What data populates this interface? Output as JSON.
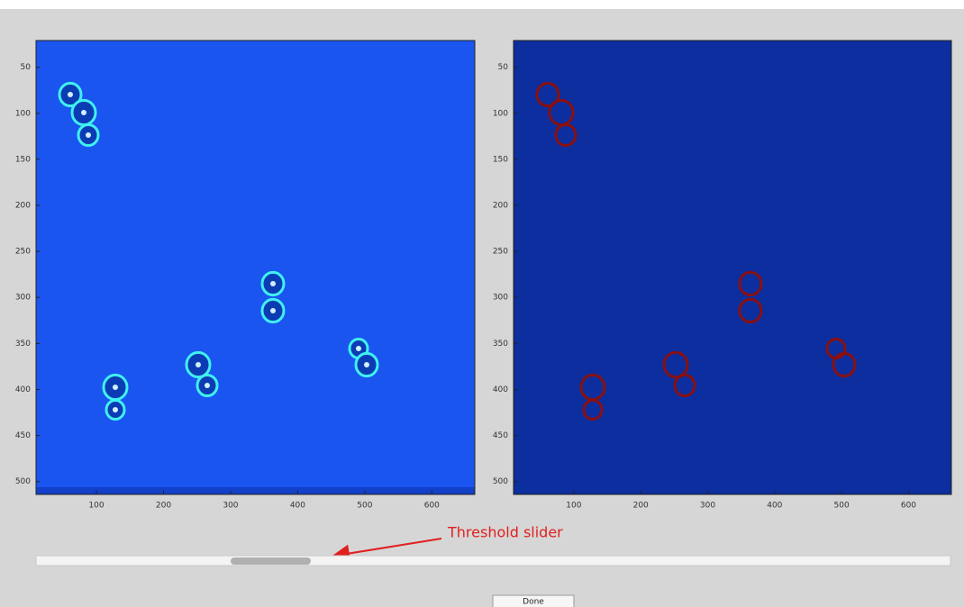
{
  "left_panel": {
    "xlim": [
      10,
      664
    ],
    "ylim": [
      21,
      514
    ],
    "xticks": [
      100,
      200,
      300,
      400,
      500,
      600
    ],
    "yticks": [
      50,
      100,
      150,
      200,
      250,
      300,
      350,
      400,
      450,
      500
    ]
  },
  "right_panel": {
    "xlim": [
      10,
      664
    ],
    "ylim": [
      21,
      514
    ],
    "xticks": [
      100,
      200,
      300,
      400,
      500,
      600
    ],
    "yticks": [
      50,
      100,
      150,
      200,
      250,
      300,
      350,
      400,
      450,
      500
    ]
  },
  "annotation": "Threshold slider",
  "button": "Done"
}
